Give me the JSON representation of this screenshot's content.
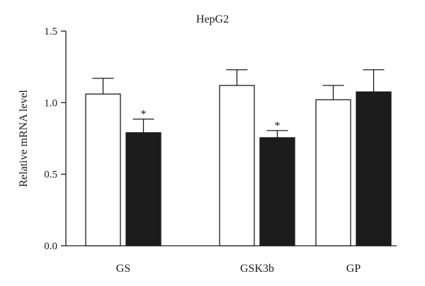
{
  "chart_data": {
    "type": "bar",
    "title": "HepG2",
    "xlabel": "",
    "ylabel": "Relative mRNA level",
    "ylim": [
      0,
      1.5
    ],
    "yticks": [
      "0.0",
      "0.5",
      "1.0",
      "1.5"
    ],
    "categories": [
      "GS",
      "GSK3b",
      "GP"
    ],
    "grid": false,
    "series": [
      {
        "fill": "#ffffff",
        "values": [
          1.06,
          1.12,
          1.02
        ],
        "errors": [
          0.11,
          0.11,
          0.1
        ]
      },
      {
        "fill": "#1c1c1c",
        "values": [
          0.79,
          0.755,
          1.075
        ],
        "errors": [
          0.095,
          0.05,
          0.155
        ],
        "annotations": [
          "*",
          "*",
          ""
        ]
      }
    ]
  }
}
